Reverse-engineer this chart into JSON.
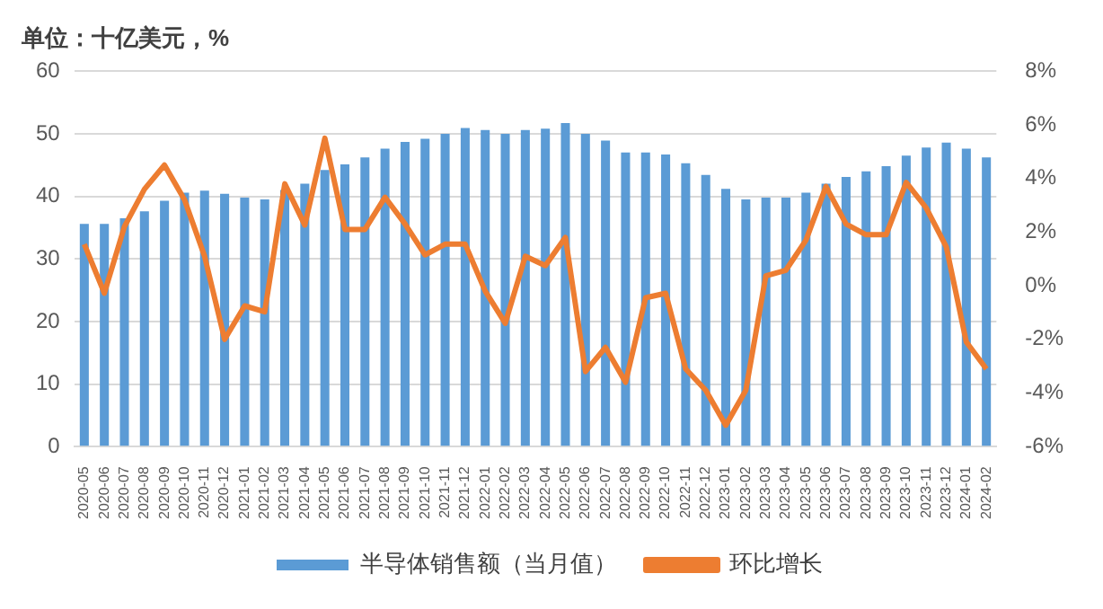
{
  "chart_data": {
    "type": "bar",
    "title": "单位：十亿美元，%",
    "categories": [
      "2020-05",
      "2020-06",
      "2020-07",
      "2020-08",
      "2020-09",
      "2020-10",
      "2020-11",
      "2020-12",
      "2021-01",
      "2021-02",
      "2021-03",
      "2021-04",
      "2021-05",
      "2021-06",
      "2021-07",
      "2021-08",
      "2021-09",
      "2021-10",
      "2021-11",
      "2021-12",
      "2022-01",
      "2022-02",
      "2022-03",
      "2022-04",
      "2022-05",
      "2022-06",
      "2022-07",
      "2022-08",
      "2022-09",
      "2022-10",
      "2022-11",
      "2022-12",
      "2023-01",
      "2023-02",
      "2023-03",
      "2023-04",
      "2023-05",
      "2023-06",
      "2023-07",
      "2023-08",
      "2023-09",
      "2023-10",
      "2023-11",
      "2023-12",
      "2024-01",
      "2024-02"
    ],
    "series": [
      {
        "name": "半导体销售额（当月值）",
        "color": "#5b9bd5",
        "values": [
          35.6,
          35.6,
          36.5,
          37.6,
          39.3,
          40.6,
          40.9,
          40.4,
          39.8,
          39.5,
          41.0,
          42.0,
          44.2,
          45.1,
          46.2,
          47.6,
          48.7,
          49.2,
          50.0,
          50.9,
          50.6,
          50.0,
          50.6,
          50.8,
          51.7,
          50.0,
          48.9,
          47.0,
          47.0,
          46.7,
          45.3,
          43.4,
          41.2,
          39.5,
          39.8,
          39.8,
          40.6,
          42.0,
          43.1,
          44.0,
          44.8,
          46.5,
          47.8,
          48.6,
          47.6,
          46.2
        ]
      },
      {
        "name": "环比增长",
        "type": "line",
        "axis": "y2",
        "color": "#ed7d31",
        "values": [
          1.55,
          -0.28,
          2.2,
          3.6,
          4.5,
          3.2,
          1.1,
          -2.0,
          -0.75,
          -0.97,
          3.8,
          2.26,
          5.5,
          2.1,
          2.1,
          3.3,
          2.3,
          1.15,
          1.55,
          1.55,
          -0.2,
          -1.4,
          1.1,
          0.75,
          1.8,
          -3.2,
          -2.3,
          -3.6,
          -0.45,
          -0.28,
          -3.1,
          -3.9,
          -5.2,
          -3.9,
          0.37,
          0.58,
          1.7,
          3.7,
          2.3,
          1.9,
          1.9,
          3.85,
          2.9,
          1.45,
          -2.1,
          -3.1
        ]
      }
    ],
    "ylim": [
      0,
      60
    ],
    "yticks": [
      0,
      10,
      20,
      30,
      40,
      50,
      60
    ],
    "y2lim": [
      -6,
      8
    ],
    "y2ticks": [
      {
        "value": -6,
        "label": "-6%"
      },
      {
        "value": -4,
        "label": "-4%"
      },
      {
        "value": -2,
        "label": "-2%"
      },
      {
        "value": 0,
        "label": "0%"
      },
      {
        "value": 2,
        "label": "2%"
      },
      {
        "value": 4,
        "label": "4%"
      },
      {
        "value": 6,
        "label": "6%"
      },
      {
        "value": 8,
        "label": "8%"
      }
    ],
    "grid": "y",
    "legend": "bottom",
    "marker": "none",
    "line_style": "solid"
  }
}
